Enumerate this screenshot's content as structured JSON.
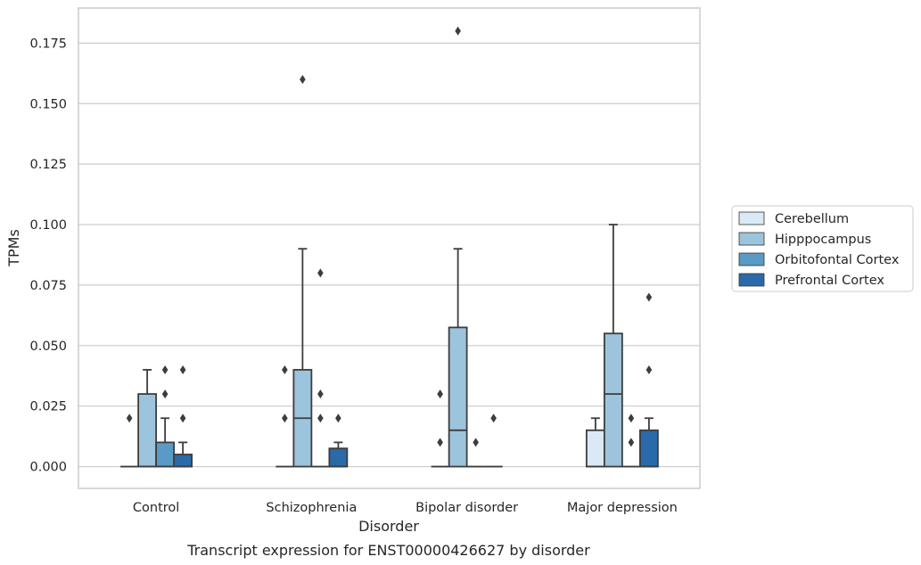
{
  "chart_data": {
    "type": "box",
    "caption": "Transcript expression for ENST00000426627 by disorder",
    "xlabel": "Disorder",
    "ylabel": "TPMs",
    "ylim": [
      -0.009,
      0.1895
    ],
    "yticks": [
      0.0,
      0.025,
      0.05,
      0.075,
      0.1,
      0.125,
      0.15,
      0.175
    ],
    "ytick_labels": [
      "0.000",
      "0.025",
      "0.050",
      "0.075",
      "0.100",
      "0.125",
      "0.150",
      "0.175"
    ],
    "grid": true,
    "legend_position": "right",
    "categories": [
      "Control",
      "Schizophrenia",
      "Bipolar disorder",
      "Major depression"
    ],
    "series": [
      {
        "name": "Cerebellum",
        "color": "#dbe9f6",
        "boxes": [
          {
            "q1": 0,
            "median": 0,
            "q3": 0,
            "whisker_low": 0,
            "whisker_high": 0,
            "outliers": [
              0.02
            ]
          },
          {
            "q1": 0,
            "median": 0,
            "q3": 0,
            "whisker_low": 0,
            "whisker_high": 0,
            "outliers": [
              0.02,
              0.04
            ]
          },
          {
            "q1": 0,
            "median": 0,
            "q3": 0,
            "whisker_low": 0,
            "whisker_high": 0,
            "outliers": [
              0.01,
              0.03
            ]
          },
          {
            "q1": 0,
            "median": 0,
            "q3": 0.015,
            "whisker_low": 0,
            "whisker_high": 0.02,
            "outliers": []
          }
        ]
      },
      {
        "name": "Hipppocampus",
        "color": "#9cc4dc",
        "boxes": [
          {
            "q1": 0,
            "median": 0,
            "q3": 0.03,
            "whisker_low": 0,
            "whisker_high": 0.04,
            "outliers": []
          },
          {
            "q1": 0,
            "median": 0.02,
            "q3": 0.04,
            "whisker_low": 0,
            "whisker_high": 0.09,
            "outliers": [
              0.16
            ]
          },
          {
            "q1": 0,
            "median": 0.015,
            "q3": 0.0575,
            "whisker_low": 0,
            "whisker_high": 0.09,
            "outliers": [
              0.18
            ]
          },
          {
            "q1": 0,
            "median": 0.03,
            "q3": 0.055,
            "whisker_low": 0,
            "whisker_high": 0.1,
            "outliers": []
          }
        ]
      },
      {
        "name": "Orbitofontal Cortex",
        "color": "#5a9ac6",
        "boxes": [
          {
            "q1": 0,
            "median": 0,
            "q3": 0.01,
            "whisker_low": 0,
            "whisker_high": 0.02,
            "outliers": [
              0.03,
              0.04
            ]
          },
          {
            "q1": 0,
            "median": 0,
            "q3": 0,
            "whisker_low": 0,
            "whisker_high": 0,
            "outliers": [
              0.02,
              0.03,
              0.08
            ]
          },
          {
            "q1": 0,
            "median": 0,
            "q3": 0,
            "whisker_low": 0,
            "whisker_high": 0,
            "outliers": [
              0.01
            ]
          },
          {
            "q1": 0,
            "median": 0,
            "q3": 0,
            "whisker_low": 0,
            "whisker_high": 0,
            "outliers": [
              0.01,
              0.02
            ]
          }
        ]
      },
      {
        "name": "Prefrontal Cortex",
        "color": "#2a6aa8",
        "boxes": [
          {
            "q1": 0,
            "median": 0,
            "q3": 0.005,
            "whisker_low": 0,
            "whisker_high": 0.01,
            "outliers": [
              0.02,
              0.04
            ]
          },
          {
            "q1": 0,
            "median": 0,
            "q3": 0.0075,
            "whisker_low": 0,
            "whisker_high": 0.01,
            "outliers": [
              0.02
            ]
          },
          {
            "q1": 0,
            "median": 0,
            "q3": 0,
            "whisker_low": 0,
            "whisker_high": 0,
            "outliers": [
              0.02
            ]
          },
          {
            "q1": 0,
            "median": 0,
            "q3": 0.015,
            "whisker_low": 0,
            "whisker_high": 0.02,
            "outliers": [
              0.04,
              0.07
            ]
          }
        ]
      }
    ]
  }
}
